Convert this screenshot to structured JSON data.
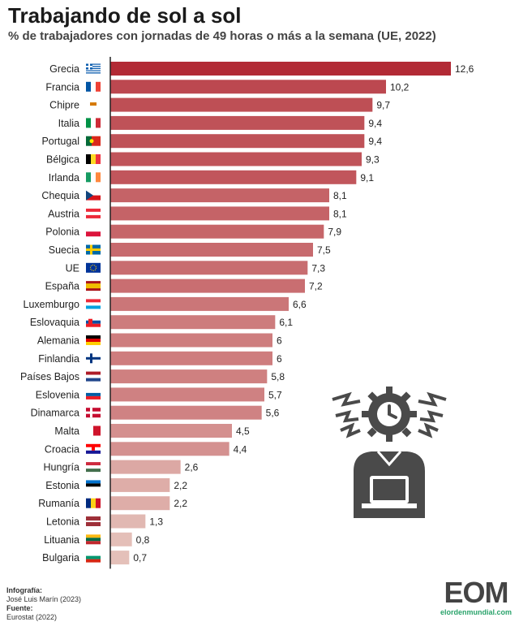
{
  "header": {
    "title": "Trabajando de sol a sol",
    "subtitle": "% de trabajadores con jornadas de 49 horas o más a la semana (UE, 2022)"
  },
  "credits": {
    "infografia_label": "Infografía:",
    "infografia_value": "José Luis Marín (2023)",
    "fuente_label": "Fuente:",
    "fuente_value": "Eurostat (2022)"
  },
  "logo": {
    "mark": "EOM",
    "url": "elordenmundial.com",
    "accent": "#2aa36b"
  },
  "illustration_icon": "overworked-worker-laptop-clock-icon",
  "chart_data": {
    "type": "bar",
    "orientation": "horizontal",
    "categories": [
      "Grecia",
      "Francia",
      "Chipre",
      "Italia",
      "Portugal",
      "Bélgica",
      "Irlanda",
      "Chequia",
      "Austria",
      "Polonia",
      "Suecia",
      "UE",
      "España",
      "Luxemburgo",
      "Eslovaquia",
      "Alemania",
      "Finlandia",
      "Países Bajos",
      "Eslovenia",
      "Dinamarca",
      "Malta",
      "Croacia",
      "Hungría",
      "Estonia",
      "Rumanía",
      "Letonia",
      "Lituania",
      "Bulgaria"
    ],
    "values": [
      12.6,
      10.2,
      9.7,
      9.4,
      9.4,
      9.3,
      9.1,
      8.1,
      8.1,
      7.9,
      7.5,
      7.3,
      7.2,
      6.6,
      6.1,
      6,
      6,
      5.8,
      5.7,
      5.6,
      4.5,
      4.4,
      2.6,
      2.2,
      2.2,
      1.3,
      0.8,
      0.7
    ],
    "value_labels": [
      "12,6",
      "10,2",
      "9,7",
      "9,4",
      "9,4",
      "9,3",
      "9,1",
      "8,1",
      "8,1",
      "7,9",
      "7,5",
      "7,3",
      "7,2",
      "6,6",
      "6,1",
      "6",
      "6",
      "5,8",
      "5,7",
      "5,6",
      "4,5",
      "4,4",
      "2,6",
      "2,2",
      "2,2",
      "1,3",
      "0,8",
      "0,7"
    ],
    "flag_icons": [
      "flag-greece-icon",
      "flag-france-icon",
      "flag-cyprus-icon",
      "flag-italy-icon",
      "flag-portugal-icon",
      "flag-belgium-icon",
      "flag-ireland-icon",
      "flag-czechia-icon",
      "flag-austria-icon",
      "flag-poland-icon",
      "flag-sweden-icon",
      "flag-eu-icon",
      "flag-spain-icon",
      "flag-luxembourg-icon",
      "flag-slovakia-icon",
      "flag-germany-icon",
      "flag-finland-icon",
      "flag-netherlands-icon",
      "flag-slovenia-icon",
      "flag-denmark-icon",
      "flag-malta-icon",
      "flag-croatia-icon",
      "flag-hungary-icon",
      "flag-estonia-icon",
      "flag-romania-icon",
      "flag-latvia-icon",
      "flag-lithuania-icon",
      "flag-bulgaria-icon"
    ],
    "color_high": "#b22a35",
    "color_low": "#e4c0b9",
    "xlim": [
      0,
      12.6
    ],
    "axis_color": "#222222",
    "grid": false
  }
}
